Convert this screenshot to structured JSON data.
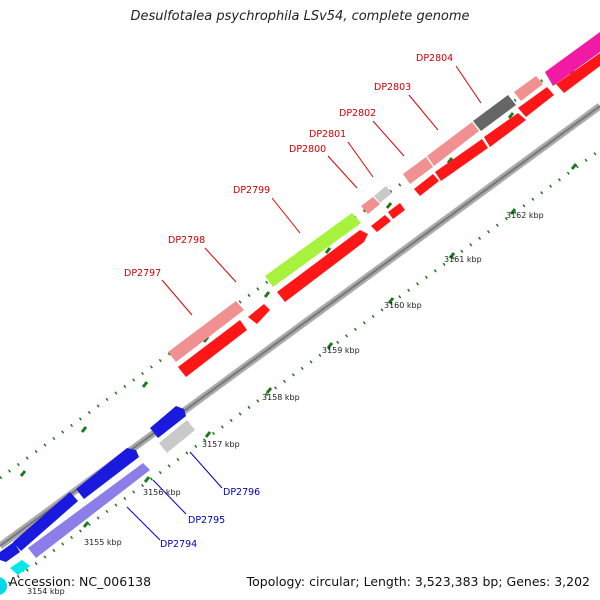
{
  "title": "Desulfotalea psychrophila LSv54, complete genome",
  "footer": {
    "accession": "Accession: NC_006138",
    "topology": "Topology: circular; Length: 3,523,383 bp; Genes: 3,202"
  },
  "colors": {
    "forward_label": "#cc0000",
    "reverse_label": "#0000bb",
    "backbone": "#888888",
    "tick": "#1a7a1a"
  },
  "kbp_labels": [
    "3154 kbp",
    "3155 kbp",
    "3156 kbp",
    "3157 kbp",
    "3158 kbp",
    "3159 kbp",
    "3160 kbp",
    "3161 kbp",
    "3162 kbp"
  ],
  "gene_labels": {
    "forward": [
      "DP2797",
      "DP2798",
      "DP2799",
      "DP2800",
      "DP2801",
      "DP2802",
      "DP2803",
      "DP2804"
    ],
    "reverse": [
      "DP2794",
      "DP2795",
      "DP2796"
    ]
  }
}
